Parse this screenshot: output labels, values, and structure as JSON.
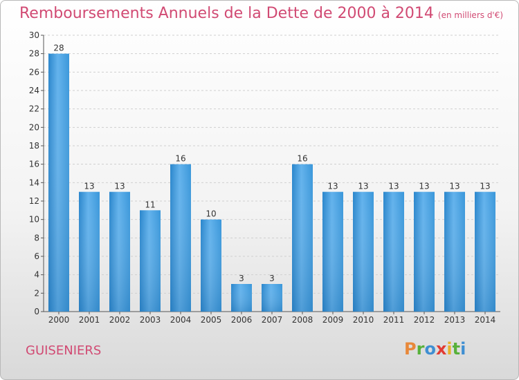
{
  "title": "Remboursements Annuels de la Dette de 2000 à 2014",
  "unit": "(en milliers d'€)",
  "town": "GUISENIERS",
  "brand": "Proxiti",
  "colors": {
    "bar": "#2f8fd6",
    "bar_light": "#62b2ec",
    "title": "#d14a73"
  },
  "chart_data": {
    "type": "bar",
    "title": "Remboursements Annuels de la Dette de 2000 à 2014",
    "ylabel": "",
    "xlabel": "",
    "ylim": [
      0,
      30
    ],
    "yticks": [
      0,
      2,
      4,
      6,
      8,
      10,
      12,
      14,
      16,
      18,
      20,
      22,
      24,
      26,
      28,
      30
    ],
    "categories": [
      "2000",
      "2001",
      "2002",
      "2003",
      "2004",
      "2005",
      "2006",
      "2007",
      "2008",
      "2009",
      "2010",
      "2011",
      "2012",
      "2013",
      "2014"
    ],
    "values": [
      28,
      13,
      13,
      11,
      16,
      10,
      3,
      3,
      16,
      13,
      13,
      13,
      13,
      13,
      13
    ],
    "grid": true
  }
}
